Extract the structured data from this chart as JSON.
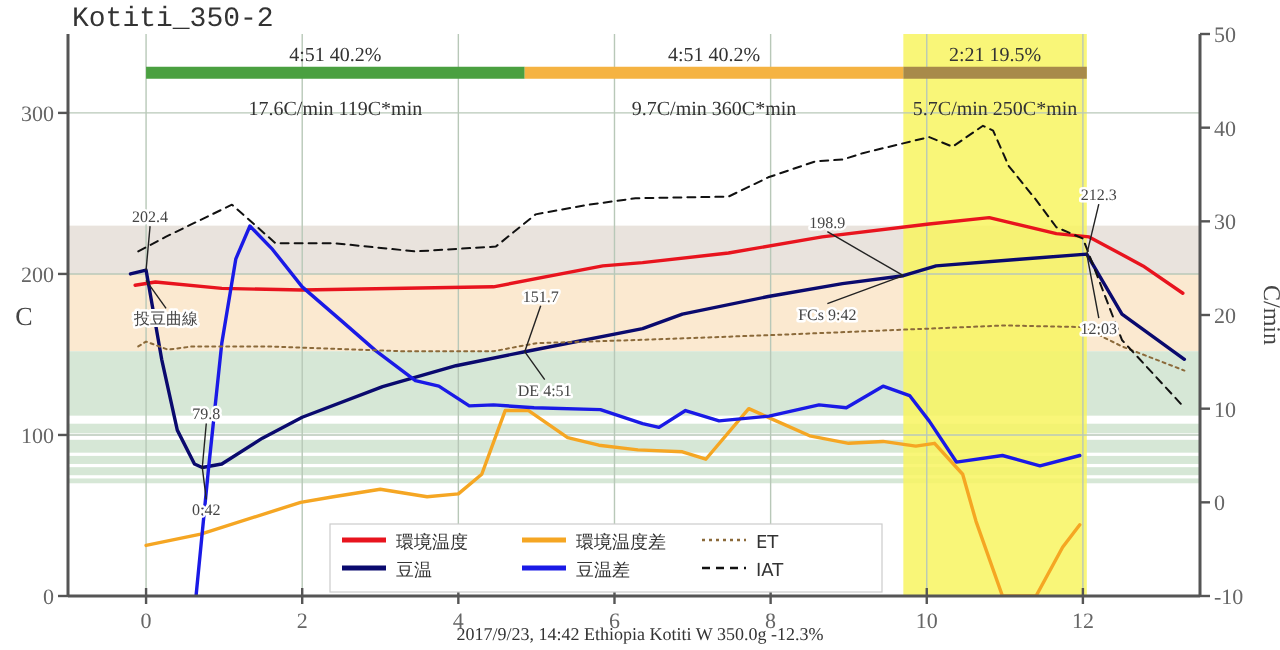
{
  "chart_data": {
    "type": "line",
    "title": "Kotiti_350-2",
    "ylabel": "C",
    "y2label": "C/min",
    "xlim": [
      -1,
      13.5
    ],
    "xticks": [
      0,
      2,
      4,
      6,
      8,
      10,
      12
    ],
    "ylim": [
      0,
      349
    ],
    "yticks": [
      0,
      100,
      200,
      300
    ],
    "y2lim": [
      -10,
      50
    ],
    "y2ticks": [
      -10,
      0,
      10,
      20,
      30,
      40,
      50
    ],
    "grid": true,
    "legend": "bottom",
    "series": [
      {
        "name": "環境温度",
        "color": "#e8141e",
        "line_style": "solid",
        "x": [
          -0.14,
          0.12,
          0.97,
          2.0,
          4.45,
          5.85,
          6.36,
          7.46,
          8.66,
          10.03,
          10.8,
          11.66,
          12.08,
          12.77,
          13.28
        ],
        "values": [
          193,
          195,
          191,
          190,
          192,
          205,
          207,
          213,
          223,
          231,
          235,
          225,
          223,
          205,
          188
        ]
      },
      {
        "name": "豆温",
        "color": "#0a0a6e",
        "line_style": "solid",
        "x": [
          -0.2,
          0,
          0.2,
          0.4,
          0.62,
          0.72,
          0.97,
          1.49,
          2.0,
          3.03,
          3.97,
          4.85,
          6.36,
          6.87,
          7.97,
          8.92,
          9.7,
          10.12,
          11.15,
          12.05,
          12.5,
          13.3
        ],
        "values": [
          200,
          202.4,
          147,
          103,
          82,
          79.8,
          82,
          98,
          111,
          130,
          143,
          151.7,
          166,
          175,
          186,
          194,
          198.9,
          205,
          209,
          212.3,
          175,
          147
        ]
      },
      {
        "name": "環境温度差",
        "color": "#f5a623",
        "axis": "y2",
        "line_style": "solid",
        "x": [
          0,
          0.7,
          1.98,
          2.4,
          3.0,
          3.6,
          4.0,
          4.3,
          4.6,
          4.9,
          5.4,
          5.8,
          6.3,
          6.87,
          7.17,
          7.72,
          8.07,
          8.5,
          9.0,
          9.44,
          9.86,
          10.1,
          10.46,
          10.63,
          10.97,
          11.4,
          11.74,
          11.96
        ],
        "values": [
          -4.6,
          -3.4,
          0,
          0.6,
          1.4,
          0.6,
          0.9,
          3,
          9.8,
          9.8,
          6.9,
          6.1,
          5.6,
          5.4,
          4.6,
          10,
          8.7,
          7.1,
          6.3,
          6.5,
          6.0,
          6.3,
          3.0,
          -2,
          -10,
          -10,
          -4.8,
          -2.4
        ]
      },
      {
        "name": "豆温差",
        "color": "#1a1ae6",
        "axis": "y2",
        "line_style": "solid",
        "x": [
          0.64,
          0.8,
          0.97,
          1.15,
          1.33,
          1.62,
          2.0,
          2.5,
          2.94,
          3.45,
          3.75,
          4.14,
          4.45,
          4.97,
          5.82,
          6.36,
          6.57,
          6.91,
          7.34,
          7.98,
          8.62,
          8.97,
          9.44,
          9.78,
          10.03,
          10.38,
          10.97,
          11.45,
          11.96
        ],
        "values": [
          -10,
          3.6,
          17,
          26,
          29.5,
          27,
          23,
          19.4,
          16.2,
          13,
          12.4,
          10.3,
          10.4,
          10.1,
          9.9,
          8.4,
          8.0,
          9.8,
          8.7,
          9.2,
          10.4,
          10.1,
          12.4,
          11.4,
          8.7,
          4.3,
          5.0,
          3.9,
          5.0
        ]
      },
      {
        "color": "#4aa040",
        "line_style": "solid",
        "x": [
          0,
          4.85
        ],
        "values": [
          325,
          325
        ]
      },
      {
        "color": "#f5b342",
        "line_style": "solid",
        "x": [
          4.85,
          9.7
        ],
        "values": [
          325,
          325
        ]
      },
      {
        "color": "#a88a4a",
        "line_style": "solid",
        "x": [
          9.7,
          12.05
        ],
        "values": [
          325,
          325
        ]
      },
      {
        "name": "ET",
        "color": "#8b6a3a",
        "line_style": "dotted",
        "x": [
          -0.1,
          0,
          0.28,
          0.6,
          1.57,
          3.3,
          4.45,
          5.0,
          6.3,
          8,
          9.5,
          11,
          12.0,
          12.5,
          13.3
        ],
        "values": [
          155,
          158,
          153,
          155,
          155,
          152,
          152,
          157,
          159,
          162,
          165,
          168,
          167,
          155,
          140
        ]
      },
      {
        "name": "IAT",
        "color": "#111111",
        "line_style": "dashed",
        "x": [
          -0.1,
          0.25,
          1.1,
          1.66,
          2.43,
          3.45,
          4.48,
          4.99,
          5.67,
          6.27,
          7.46,
          7.97,
          8.58,
          8.92,
          9.18,
          10.03,
          10.33,
          10.72,
          10.85,
          11.05,
          11.4,
          11.66,
          12.0,
          12.5,
          13.28
        ],
        "values": [
          214,
          223,
          243,
          219,
          219,
          214,
          217,
          237,
          243,
          247,
          248,
          260,
          270,
          271,
          275,
          285,
          279,
          292,
          289,
          267,
          246,
          229,
          222,
          159,
          118
        ]
      }
    ],
    "bands": [
      {
        "axis": "y",
        "from": 200,
        "to": 230,
        "color": "#e9e3dd"
      },
      {
        "axis": "y",
        "from": 152,
        "to": 200,
        "color": "#fbe9d0"
      },
      {
        "axis": "y",
        "from": 112,
        "to": 152,
        "color": "#d6e7d6"
      },
      {
        "axis": "y",
        "from": 101,
        "to": 107,
        "color": "#d6e7d6"
      },
      {
        "axis": "y",
        "from": 89,
        "to": 97,
        "color": "#d6e7d6"
      },
      {
        "axis": "y",
        "from": 82,
        "to": 87,
        "color": "#d6e7d6"
      },
      {
        "axis": "y",
        "from": 75,
        "to": 80,
        "color": "#d6e7d6"
      },
      {
        "axis": "y",
        "from": 70,
        "to": 73,
        "color": "#d6e7d6"
      },
      {
        "axis": "x",
        "from": 9.7,
        "to": 12.05,
        "color": "#f8f560"
      }
    ],
    "annotations": [
      {
        "text": "202.4",
        "x": 0,
        "y": 202.4
      },
      {
        "text": "投豆曲線",
        "x": 0,
        "y": 196
      },
      {
        "text": "79.8",
        "x": 0.72,
        "y": 79.8
      },
      {
        "text": "0:42",
        "x": 0.72,
        "y": 79.8
      },
      {
        "text": "151.7",
        "x": 4.85,
        "y": 151.7
      },
      {
        "text": "DE 4:51",
        "x": 4.85,
        "y": 151.7
      },
      {
        "text": "198.9",
        "x": 9.7,
        "y": 198.9
      },
      {
        "text": "FCs 9:42",
        "x": 9.7,
        "y": 198.9
      },
      {
        "text": "212.3",
        "x": 12.05,
        "y": 212.3
      },
      {
        "text": "12:03",
        "x": 12.05,
        "y": 212.3
      },
      {
        "text": "4:51  40.2%",
        "x": 2.425,
        "y": 325
      },
      {
        "text": "17.6C/min  119C*min",
        "x": 2.425,
        "y": 325
      },
      {
        "text": "4:51  40.2%",
        "x": 7.275,
        "y": 325
      },
      {
        "text": "9.7C/min  360C*min",
        "x": 7.275,
        "y": 325
      },
      {
        "text": "2:21  19.5%",
        "x": 10.875,
        "y": 325
      },
      {
        "text": "5.7C/min  250C*min",
        "x": 10.875,
        "y": 325
      },
      "2017/9/23, 14:42  Ethiopia Kotiti W  350.0g  -12.3%"
    ]
  }
}
